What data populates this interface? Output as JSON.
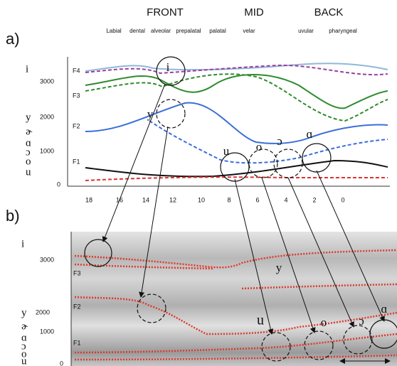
{
  "header": {
    "regions": [
      "FRONT",
      "MID",
      "BACK"
    ],
    "places": [
      "Labial",
      "dental",
      "alveolar",
      "prepalatal",
      "palatal",
      "velar",
      "uvular",
      "pharyngeal"
    ]
  },
  "panel_a": {
    "label": "a)",
    "y_labels": [
      "3000",
      "2000",
      "1000",
      "0"
    ],
    "side_vowels": [
      "i",
      "y",
      "ɚ",
      "ɑ",
      "ɔ",
      "o",
      "u"
    ],
    "formants": [
      "F4",
      "F3",
      "F2",
      "F1"
    ],
    "x_labels": [
      "18",
      "16",
      "14",
      "12",
      "10",
      "8",
      "6",
      "4",
      "2",
      "0"
    ],
    "vowels": [
      "i",
      "y",
      "u",
      "o",
      "ɔ",
      "ɑ"
    ]
  },
  "panel_b": {
    "label": "b)",
    "y_labels": [
      "3000",
      "2000",
      "1000",
      "0"
    ],
    "side_vowels": [
      "i",
      "y",
      "ɚ",
      "ɑ",
      "ɔ",
      "o",
      "u"
    ],
    "formants": [
      "F3",
      "F2",
      "F1"
    ],
    "vowels": [
      "y",
      "u",
      "o",
      "ɔ",
      "ɑ"
    ]
  }
}
